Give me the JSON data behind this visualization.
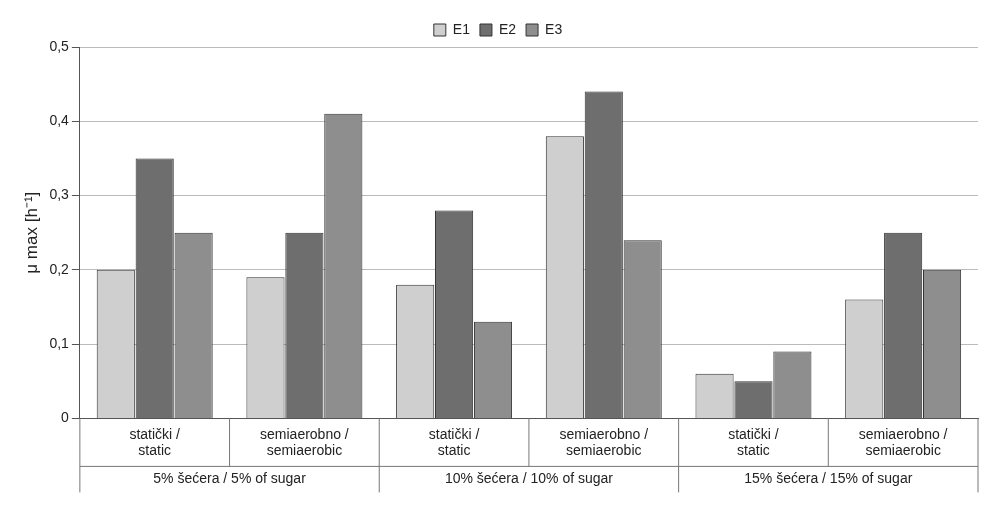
{
  "chart_data": {
    "type": "bar",
    "ylabel": "μ max [h⁻¹]",
    "categories": [
      "statički / static",
      "semiaerobno / semiaerobic",
      "statički / static",
      "semiaerobno / semiaerobic",
      "statički / static",
      "semiaerobno / semiaerobic"
    ],
    "series": [
      {
        "name": "E1",
        "color": "#cfcfcf",
        "values": [
          0.2,
          0.19,
          0.18,
          0.38,
          0.06,
          0.16
        ]
      },
      {
        "name": "E2",
        "color": "#6e6e6e",
        "values": [
          0.35,
          0.25,
          0.28,
          0.44,
          0.05,
          0.25
        ]
      },
      {
        "name": "E3",
        "color": "#8e8e8e",
        "values": [
          0.25,
          0.41,
          0.13,
          0.24,
          0.09,
          0.2
        ]
      }
    ],
    "ylim": [
      0,
      0.5
    ],
    "yticks": [
      {
        "value": 0,
        "label": "0"
      },
      {
        "value": 0.1,
        "label": "0,1"
      },
      {
        "value": 0.2,
        "label": "0,2"
      },
      {
        "value": 0.3,
        "label": "0,3"
      },
      {
        "value": 0.4,
        "label": "0,4"
      },
      {
        "value": 0.5,
        "label": "0,5"
      }
    ],
    "annotations": [
      "5% šećera / 5% of sugar",
      "10% šećera / 10% of sugar",
      "15% šećera / 15% of sugar"
    ],
    "grid": "y",
    "legend": "top"
  }
}
